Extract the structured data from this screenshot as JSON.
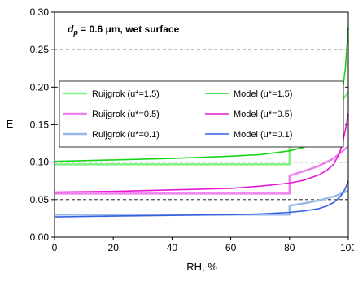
{
  "chart_data": {
    "type": "line",
    "annotation": {
      "prefix": "d",
      "subscript": "p",
      "rest": " = 0.6 μm, wet surface"
    },
    "xlabel": "RH, %",
    "ylabel": "E",
    "xlim": [
      0,
      100
    ],
    "ylim": [
      0,
      0.3
    ],
    "x_ticks": [
      0,
      20,
      40,
      60,
      80,
      100
    ],
    "x_tick_labels": [
      "0",
      "20",
      "40",
      "60",
      "80",
      "100"
    ],
    "y_ticks": [
      0,
      0.05,
      0.1,
      0.15,
      0.2,
      0.25,
      0.3
    ],
    "y_tick_labels": [
      "0.00",
      "0.05",
      "0.10",
      "0.15",
      "0.20",
      "0.25",
      "0.30"
    ],
    "gridlines": "horizontal dashed",
    "legend_position": "left-middle",
    "legend_columns": 2,
    "series": [
      {
        "name": "Ruijgrok (u*=1.5)",
        "color": "#7ff27f",
        "width": 2.5,
        "x": [
          0,
          20,
          40,
          60,
          80,
          80,
          85,
          90,
          95,
          100
        ],
        "y": [
          0.097,
          0.097,
          0.097,
          0.097,
          0.097,
          0.133,
          0.141,
          0.152,
          0.168,
          0.193
        ]
      },
      {
        "name": "Model (u*=1.5)",
        "color": "#19d319",
        "width": 1.6,
        "x": [
          0,
          20,
          40,
          60,
          70,
          80,
          85,
          90,
          93,
          95,
          97,
          98,
          99,
          100
        ],
        "y": [
          0.101,
          0.103,
          0.105,
          0.108,
          0.11,
          0.115,
          0.12,
          0.13,
          0.14,
          0.152,
          0.175,
          0.195,
          0.225,
          0.28
        ]
      },
      {
        "name": "Ruijgrok (u*=0.5)",
        "color": "#f07ff0",
        "width": 2.5,
        "x": [
          0,
          20,
          40,
          60,
          80,
          80,
          85,
          90,
          95,
          100
        ],
        "y": [
          0.058,
          0.058,
          0.058,
          0.058,
          0.058,
          0.082,
          0.088,
          0.095,
          0.105,
          0.121
        ]
      },
      {
        "name": "Model (u*=0.5)",
        "color": "#e61ad6",
        "width": 1.6,
        "x": [
          0,
          20,
          40,
          60,
          70,
          80,
          85,
          90,
          93,
          95,
          97,
          98,
          99,
          100
        ],
        "y": [
          0.06,
          0.061,
          0.063,
          0.065,
          0.068,
          0.072,
          0.076,
          0.083,
          0.09,
          0.097,
          0.112,
          0.125,
          0.143,
          0.165
        ]
      },
      {
        "name": "Ruijgrok (u*=0.1)",
        "color": "#9bb8ea",
        "width": 2.5,
        "x": [
          0,
          20,
          40,
          60,
          80,
          80,
          85,
          90,
          95,
          100
        ],
        "y": [
          0.03,
          0.03,
          0.03,
          0.03,
          0.03,
          0.042,
          0.045,
          0.049,
          0.054,
          0.062
        ]
      },
      {
        "name": "Model (u*=0.1)",
        "color": "#3760e0",
        "width": 1.6,
        "x": [
          0,
          20,
          40,
          60,
          70,
          80,
          85,
          90,
          93,
          95,
          97,
          98,
          99,
          100
        ],
        "y": [
          0.027,
          0.028,
          0.029,
          0.03,
          0.031,
          0.033,
          0.035,
          0.038,
          0.042,
          0.046,
          0.053,
          0.058,
          0.065,
          0.075
        ]
      }
    ]
  }
}
